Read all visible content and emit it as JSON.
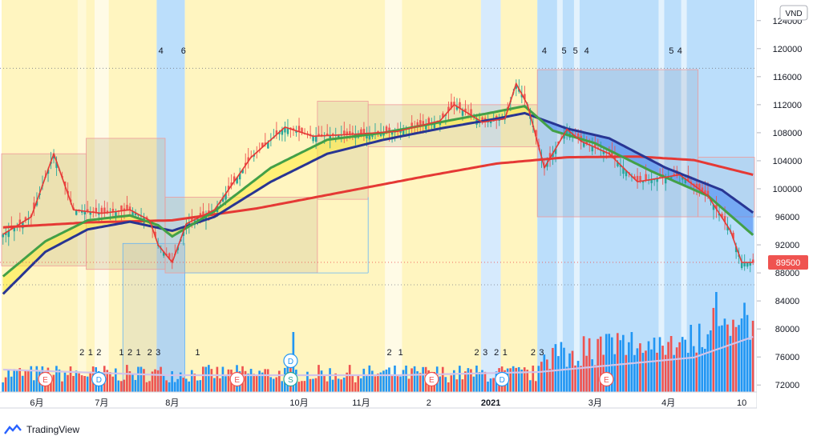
{
  "chart_data": {
    "type": "candlestick",
    "currency": "VND",
    "last_price": "89500",
    "x_ticks": [
      {
        "label": "6月",
        "i": 12
      },
      {
        "label": "7月",
        "i": 35
      },
      {
        "label": "8月",
        "i": 60
      },
      {
        "label": "10月",
        "i": 105
      },
      {
        "label": "11月",
        "i": 127
      },
      {
        "label": "2",
        "i": 151
      },
      {
        "label": "2021",
        "i": 173,
        "bold": true
      },
      {
        "label": "3月",
        "i": 210
      },
      {
        "label": "4月",
        "i": 236
      },
      {
        "label": "10",
        "i": 262
      }
    ],
    "y_ticks": [
      "124000",
      "120000",
      "116000",
      "112000",
      "108000",
      "104000",
      "100000",
      "96000",
      "92000",
      "88000",
      "84000",
      "80000",
      "76000",
      "72000"
    ],
    "y_range": [
      71000,
      125800
    ],
    "top_markers": [
      {
        "label": "4",
        "i": 56
      },
      {
        "label": "6",
        "i": 64
      },
      {
        "label": "4",
        "i": 192
      },
      {
        "label": "5",
        "i": 199
      },
      {
        "label": "5",
        "i": 203
      },
      {
        "label": "4",
        "i": 207
      },
      {
        "label": "5",
        "i": 237
      },
      {
        "label": "4",
        "i": 240
      }
    ],
    "bottom_markers": [
      {
        "label": "2",
        "i": 28
      },
      {
        "label": "1",
        "i": 31
      },
      {
        "label": "2",
        "i": 34
      },
      {
        "label": "1",
        "i": 42
      },
      {
        "label": "2",
        "i": 45
      },
      {
        "label": "1",
        "i": 48
      },
      {
        "label": "2",
        "i": 52
      },
      {
        "label": "3",
        "i": 55
      },
      {
        "label": "1",
        "i": 69
      },
      {
        "label": "2",
        "i": 137
      },
      {
        "label": "1",
        "i": 141
      },
      {
        "label": "2",
        "i": 168
      },
      {
        "label": "3",
        "i": 171
      },
      {
        "label": "2",
        "i": 175
      },
      {
        "label": "1",
        "i": 178
      },
      {
        "label": "2",
        "i": 188
      },
      {
        "label": "3",
        "i": 191
      }
    ],
    "events": [
      {
        "label": "E",
        "i": 15,
        "color": "#ef5350"
      },
      {
        "label": "D",
        "i": 34,
        "color": "#2196f3"
      },
      {
        "label": "E",
        "i": 83,
        "color": "#ef5350"
      },
      {
        "label": "D",
        "i": 102,
        "color": "#2196f3",
        "stack": true
      },
      {
        "label": "S",
        "i": 102,
        "color": "#26a69a"
      },
      {
        "label": "E",
        "i": 152,
        "color": "#ef5350"
      },
      {
        "label": "D",
        "i": 177,
        "color": "#2196f3"
      },
      {
        "label": "E",
        "i": 214,
        "color": "#ef5350"
      }
    ],
    "ma_levels": {
      "red_ma": [
        [
          0,
          94500
        ],
        [
          30,
          95200
        ],
        [
          60,
          95500
        ],
        [
          90,
          97200
        ],
        [
          120,
          99500
        ],
        [
          150,
          101800
        ],
        [
          175,
          103600
        ],
        [
          200,
          104500
        ],
        [
          225,
          104600
        ],
        [
          245,
          104100
        ],
        [
          266,
          102000
        ]
      ],
      "navy_ma": [
        [
          0,
          85000
        ],
        [
          15,
          91000
        ],
        [
          30,
          94200
        ],
        [
          45,
          95300
        ],
        [
          60,
          94000
        ],
        [
          75,
          96000
        ],
        [
          95,
          101000
        ],
        [
          115,
          105000
        ],
        [
          135,
          107000
        ],
        [
          155,
          108600
        ],
        [
          175,
          110000
        ],
        [
          185,
          110800
        ],
        [
          200,
          108600
        ],
        [
          215,
          107200
        ],
        [
          235,
          103000
        ],
        [
          255,
          99800
        ],
        [
          266,
          96600
        ]
      ],
      "green_ma": [
        [
          0,
          87500
        ],
        [
          15,
          92500
        ],
        [
          30,
          95500
        ],
        [
          45,
          96200
        ],
        [
          55,
          94800
        ],
        [
          60,
          93200
        ],
        [
          75,
          96800
        ],
        [
          95,
          103000
        ],
        [
          115,
          107000
        ],
        [
          135,
          108000
        ],
        [
          155,
          109500
        ],
        [
          175,
          111000
        ],
        [
          185,
          111800
        ],
        [
          195,
          108300
        ],
        [
          210,
          106500
        ],
        [
          230,
          102500
        ],
        [
          250,
          99000
        ],
        [
          266,
          93400
        ]
      ],
      "red_fast": [
        [
          0,
          93500
        ],
        [
          10,
          96000
        ],
        [
          18,
          105000
        ],
        [
          25,
          97000
        ],
        [
          35,
          96500
        ],
        [
          45,
          97000
        ],
        [
          52,
          95500
        ],
        [
          55,
          92000
        ],
        [
          60,
          89500
        ],
        [
          65,
          95000
        ],
        [
          75,
          97000
        ],
        [
          88,
          104500
        ],
        [
          100,
          108800
        ],
        [
          110,
          107500
        ],
        [
          125,
          107800
        ],
        [
          140,
          108200
        ],
        [
          155,
          109700
        ],
        [
          160,
          112000
        ],
        [
          170,
          109500
        ],
        [
          178,
          110000
        ],
        [
          182,
          115000
        ],
        [
          186,
          112000
        ],
        [
          192,
          103000
        ],
        [
          200,
          108500
        ],
        [
          205,
          106800
        ],
        [
          215,
          105000
        ],
        [
          225,
          101000
        ],
        [
          240,
          102000
        ],
        [
          250,
          99000
        ],
        [
          258,
          94000
        ],
        [
          262,
          89500
        ],
        [
          266,
          89500
        ]
      ]
    }
  }
}
